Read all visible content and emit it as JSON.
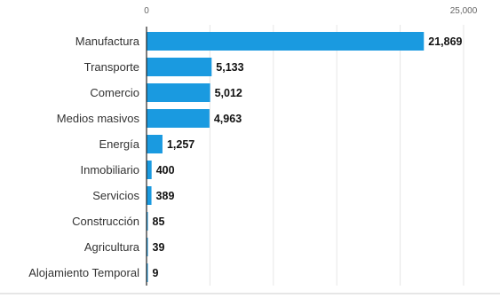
{
  "chart_data": {
    "type": "bar",
    "orientation": "horizontal",
    "categories": [
      "Manufactura",
      "Transporte",
      "Comercio",
      "Medios masivos",
      "Energía",
      "Inmobiliario",
      "Servicios",
      "Construcción",
      "Agricultura",
      "Alojamiento Temporal"
    ],
    "values": [
      21869,
      5133,
      5012,
      4963,
      1257,
      400,
      389,
      85,
      39,
      9
    ],
    "value_labels": [
      "21,869",
      "5,133",
      "5,012",
      "4,963",
      "1,257",
      "400",
      "389",
      "85",
      "39",
      "9"
    ],
    "xlim": [
      0,
      25000
    ],
    "tick_labels": [
      "0",
      "25,000"
    ],
    "grid": true,
    "bar_color": "#1a9ae0"
  }
}
